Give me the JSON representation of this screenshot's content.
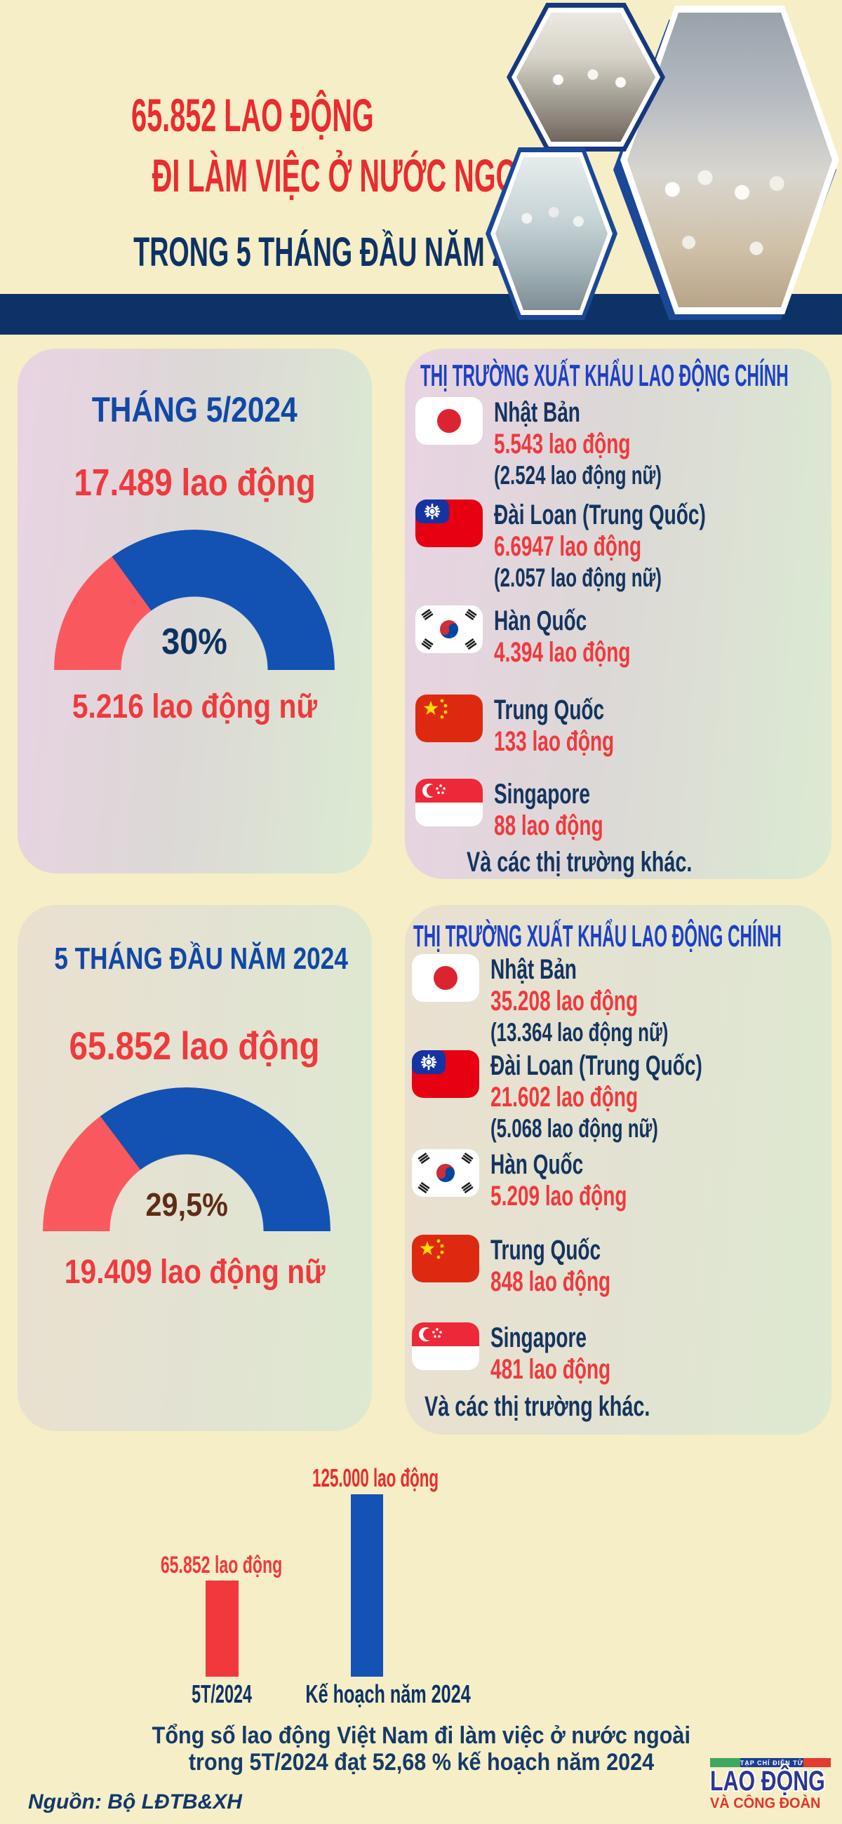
{
  "title": {
    "line1": "65.852 LAO ĐỘNG",
    "line2": "ĐI LÀM VIỆC Ở NƯỚC NGOÀI",
    "line3": "TRONG 5 THÁNG ĐẦU NĂM 2024"
  },
  "sections": [
    {
      "period": "THÁNG 5/2024",
      "total": "17.489 lao động",
      "percent_label": "30%",
      "female": "5.216 lao động nữ",
      "market_header": "THỊ TRƯỜNG XUẤT KHẨU LAO ĐỘNG CHÍNH",
      "markets": [
        {
          "flag": "japan-flag-icon",
          "name": "Nhật Bản",
          "value": "5.543 lao động",
          "female": "(2.524 lao động nữ)"
        },
        {
          "flag": "taiwan-flag-icon",
          "name": "Đài Loan (Trung Quốc)",
          "value": "6.6947 lao động",
          "female": "(2.057 lao động nữ)"
        },
        {
          "flag": "south-korea-flag-icon",
          "name": "Hàn Quốc",
          "value": "4.394 lao động"
        },
        {
          "flag": "china-flag-icon",
          "name": "Trung Quốc",
          "value": "133 lao động"
        },
        {
          "flag": "singapore-flag-icon",
          "name": "Singapore",
          "value": "88 lao động"
        }
      ],
      "markets_footer": "Và các thị trường khác."
    },
    {
      "period": "5 THÁNG ĐẦU NĂM 2024",
      "total": "65.852 lao động",
      "percent_label": "29,5%",
      "female": "19.409 lao động nữ",
      "market_header": "THỊ TRƯỜNG XUẤT KHẨU LAO ĐỘNG CHÍNH",
      "markets": [
        {
          "flag": "japan-flag-icon",
          "name": "Nhật Bản",
          "value": "35.208 lao động",
          "female": "(13.364 lao động nữ)"
        },
        {
          "flag": "taiwan-flag-icon",
          "name": "Đài Loan (Trung Quốc)",
          "value": "21.602 lao động",
          "female": "(5.068 lao động nữ)"
        },
        {
          "flag": "south-korea-flag-icon",
          "name": "Hàn Quốc",
          "value": "5.209 lao động"
        },
        {
          "flag": "china-flag-icon",
          "name": "Trung Quốc",
          "value": "848 lao động"
        },
        {
          "flag": "singapore-flag-icon",
          "name": "Singapore",
          "value": "481 lao động"
        }
      ],
      "markets_footer": "Và các thị trường khác."
    }
  ],
  "chart_data": [
    {
      "type": "gauge",
      "title": "THÁNG 5/2024",
      "value": 30,
      "label": "30%",
      "total_workers": 17489,
      "female_workers": 5216,
      "colors": {
        "female": "#f9595e",
        "other": "#1351b3"
      }
    },
    {
      "type": "gauge",
      "title": "5 THÁNG ĐẦU NĂM 2024",
      "value": 29.5,
      "label": "29,5%",
      "total_workers": 65852,
      "female_workers": 19409,
      "colors": {
        "female": "#f9595e",
        "other": "#1351b3"
      }
    },
    {
      "type": "bar",
      "categories": [
        "5T/2024",
        "Kế hoạch năm 2024"
      ],
      "values": [
        65852,
        125000
      ],
      "value_labels": [
        "65.852 lao động",
        "125.000 lao động"
      ],
      "colors": [
        "#f2383c",
        "#1353b5"
      ],
      "ymax": 125000,
      "title": "Tổng số lao động Việt Nam đi làm việc ở nước ngoài trong 5T/2024 đạt 52,68 % kế hoạch năm 2024"
    }
  ],
  "footer": {
    "summary_line1": "Tổng số lao động Việt Nam đi làm việc ở nước ngoài",
    "summary_line2": "trong 5T/2024 đạt 52,68 % kế hoạch năm 2024",
    "source": "Nguồn: Bộ LĐTB&XH"
  },
  "logo": {
    "tagline": "TẠP CHÍ ĐIỆN TỬ",
    "name_line1": "LAO ĐỘNG",
    "name_line2": "VÀ CÔNG ĐOÀN"
  },
  "colors": {
    "background": "#f6eec6",
    "navy": "#0d3266",
    "title_red": "#ea2b2f",
    "number_red": "#ee3a3e",
    "period_blue": "#1148a5",
    "header_blue": "#1c40c6",
    "gauge_red": "#f9595e",
    "gauge_blue": "#1351b3",
    "bar_red": "#f2383c",
    "bar_blue": "#1353b5",
    "percent_brown": "#5e2c16",
    "divider_navy": "#0d3266"
  }
}
